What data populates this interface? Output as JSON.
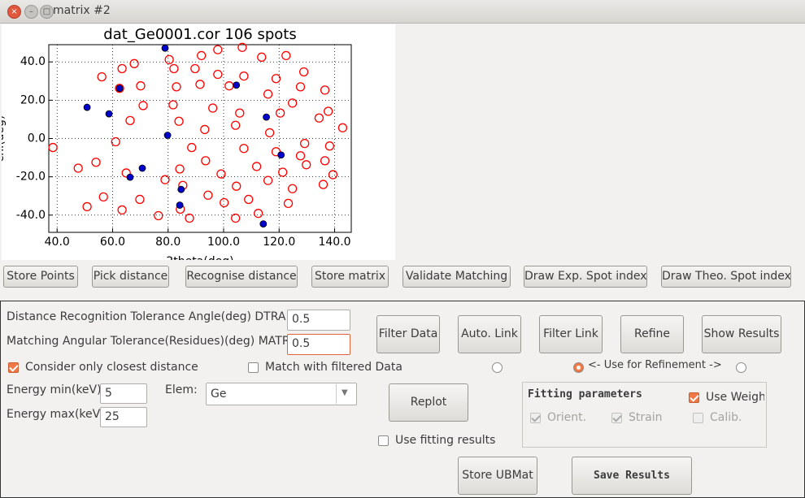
{
  "window": {
    "title": "matrix #2"
  },
  "chart_data": {
    "type": "scatter",
    "title": "dat_Ge0001.cor 106 spots",
    "x_label": "2theta(deg)",
    "y_label": "chi(deg)",
    "xlim": [
      37,
      146
    ],
    "ylim": [
      -49,
      49
    ],
    "xticks": [
      {
        "value": 40,
        "label": "40.0"
      },
      {
        "value": 60,
        "label": "60.0"
      },
      {
        "value": 80,
        "label": "80.0"
      },
      {
        "value": 100,
        "label": "100.0"
      },
      {
        "value": 120,
        "label": "120.0"
      },
      {
        "value": 140,
        "label": "140.0"
      }
    ],
    "yticks": [
      {
        "value": 40,
        "label": "40.0"
      },
      {
        "value": 20,
        "label": "20.0"
      },
      {
        "value": 0,
        "label": "0.0"
      },
      {
        "value": -20,
        "label": "-20.0"
      },
      {
        "value": -40,
        "label": "-40.0"
      }
    ],
    "grid": true,
    "series": [
      {
        "color": "#ff0000",
        "marker": "open",
        "x": [
          38.5,
          47.6,
          50.8,
          54.0,
          56.7,
          56.1,
          63.4,
          67.8,
          70.1,
          71.0,
          62.5,
          66.3,
          61.1,
          64.9,
          69.8,
          63.4,
          76.5,
          84.4,
          85.3,
          78.9,
          88.5,
          93.5,
          99.1,
          104.6,
          109.0,
          112.5,
          94.4,
          100.2,
          104.3,
          87.7,
          92.0,
          97.9,
          106.7,
          113.7,
          122.5,
          128.9,
          89.7,
          97.9,
          107.3,
          118.9,
          127.7,
          136.5,
          91.5,
          102.0,
          116.0,
          124.8,
          137.7,
          96.1,
          105.8,
          120.4,
          134.4,
          142.9,
          93.2,
          104.3,
          116.6,
          129.2,
          138.2,
          107.3,
          118.9,
          127.7,
          136.5,
          111.9,
          121.3,
          129.8,
          139.4,
          116.0,
          124.8,
          135.9,
          123.3,
          81.8,
          83.0,
          82.1,
          80.4,
          83.9,
          84.2
        ],
        "values": [
          -4.7,
          -15.5,
          -35.6,
          -12.4,
          -30.5,
          32.2,
          36.5,
          39.1,
          27.5,
          17.2,
          26.2,
          9.4,
          -1.7,
          -18.0,
          -31.8,
          -37.3,
          -40.3,
          -36.9,
          -24.5,
          -21.5,
          -4.7,
          -11.6,
          -18.5,
          -24.9,
          -31.8,
          -39.1,
          -29.6,
          -33.5,
          -41.6,
          -41.6,
          43.3,
          46.4,
          47.6,
          42.5,
          43.3,
          34.8,
          36.5,
          33.5,
          32.6,
          31.3,
          27.0,
          25.3,
          28.3,
          27.5,
          23.2,
          18.5,
          14.2,
          15.9,
          13.3,
          13.3,
          10.7,
          5.6,
          4.7,
          6.9,
          3.0,
          -2.6,
          -3.9,
          -5.2,
          -6.9,
          -9.0,
          -11.6,
          -14.6,
          -17.6,
          -13.7,
          -18.9,
          -21.9,
          -26.2,
          -24.0,
          -33.9,
          17.6,
          27.0,
          36.5,
          41.2,
          9.0,
          -15.9
        ]
      },
      {
        "color": "#0000cc",
        "marker": "filled",
        "x": [
          78.9,
          79.8,
          66.3,
          58.7,
          50.8,
          70.7,
          104.6,
          115.4,
          120.7,
          114.3,
          84.2,
          84.7,
          62.5
        ],
        "values": [
          47.2,
          1.7,
          -20.2,
          12.9,
          16.3,
          -15.5,
          27.9,
          11.2,
          -8.6,
          -44.6,
          -34.8,
          -26.6,
          26.2
        ]
      }
    ]
  },
  "toolbar": [
    "Store Points",
    "Pick distance",
    "Recognise distance",
    "Store matrix",
    "Validate Matching",
    "Draw Exp. Spot index",
    "Draw Theo. Spot index"
  ],
  "form": {
    "dtra_label": "Distance Recognition Tolerance Angle(deg) DTRA",
    "dtra_value": "0.5",
    "matr_label": "Matching Angular Tolerance(Residues)(deg) MATR",
    "matr_value": "0.5",
    "closest": "Consider only closest distance",
    "match_filtered": "Match with filtered Data",
    "emin_label": "Energy min(keV):",
    "emin": "5",
    "emax_label": "Energy max(keV):",
    "emax": "25",
    "elem_label": "Elem:",
    "elem": "Ge",
    "buttons": [
      "Filter Data",
      "Auto. Link",
      "Filter Link",
      "Refine",
      "Show Results"
    ],
    "replot": "Replot",
    "use_refinement": "<- Use for Refinement ->",
    "fitting_title": "Fitting parameters",
    "use_weights": "Use Weights",
    "orient": "Orient.",
    "strain": "Strain",
    "calib": "Calib.",
    "use_fitting": "Use fitting results",
    "store_ubmat": "Store UBMat",
    "save_results": "Save Results"
  }
}
